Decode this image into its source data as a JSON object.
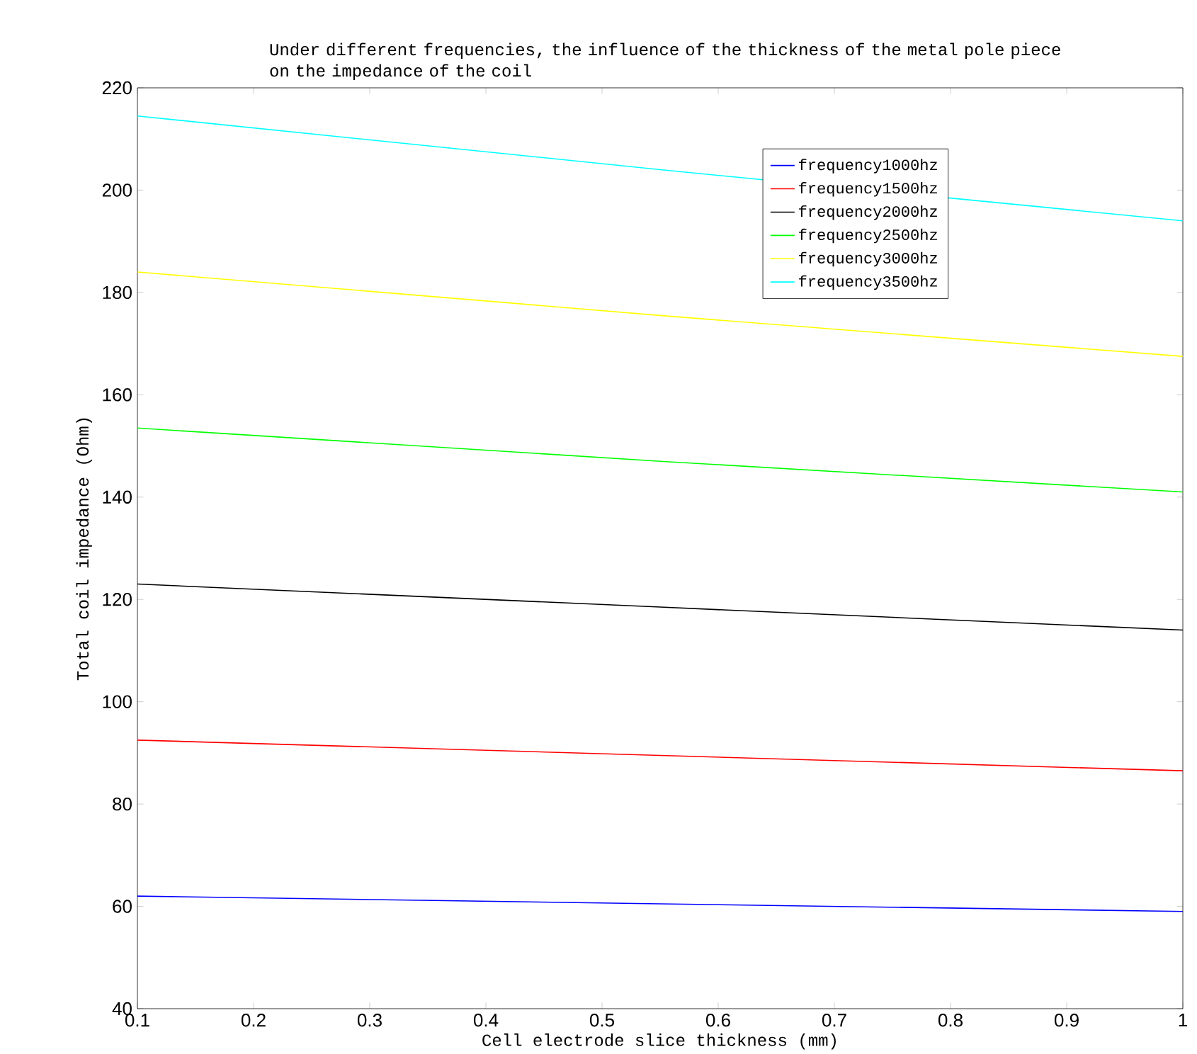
{
  "chart_data": {
    "type": "line",
    "title": "Under different frequencies, the influence of the thickness of the metal pole piece on the impedance of the coil",
    "xlabel": "Cell electrode slice thickness (mm)",
    "ylabel": "Total coil impedance (Ohm)",
    "x": [
      0.1,
      0.55,
      1.0
    ],
    "series": [
      {
        "name": "frequency1000hz",
        "color": "#0000ff",
        "values": [
          62,
          60.5,
          59
        ]
      },
      {
        "name": "frequency1500hz",
        "color": "#ff0000",
        "values": [
          92.5,
          89.5,
          86.5
        ]
      },
      {
        "name": "frequency2000hz",
        "color": "#000000",
        "values": [
          123,
          118.5,
          114
        ]
      },
      {
        "name": "frequency2500hz",
        "color": "#00ff00",
        "values": [
          153.5,
          147,
          141
        ]
      },
      {
        "name": "frequency3000hz",
        "color": "#ffff00",
        "values": [
          184,
          175.5,
          167.5
        ]
      },
      {
        "name": "frequency3500hz",
        "color": "#00ffff",
        "values": [
          214.5,
          204,
          194
        ]
      }
    ],
    "xlim": [
      0.1,
      1
    ],
    "ylim": [
      40,
      220
    ],
    "xticks": [
      0.1,
      0.2,
      0.3,
      0.4,
      0.5,
      0.6,
      0.7,
      0.8,
      0.9,
      1
    ],
    "yticks": [
      40,
      60,
      80,
      100,
      120,
      140,
      160,
      180,
      200,
      220
    ],
    "grid": false,
    "legend": "top right",
    "marker": "none",
    "line_style": "solid"
  }
}
